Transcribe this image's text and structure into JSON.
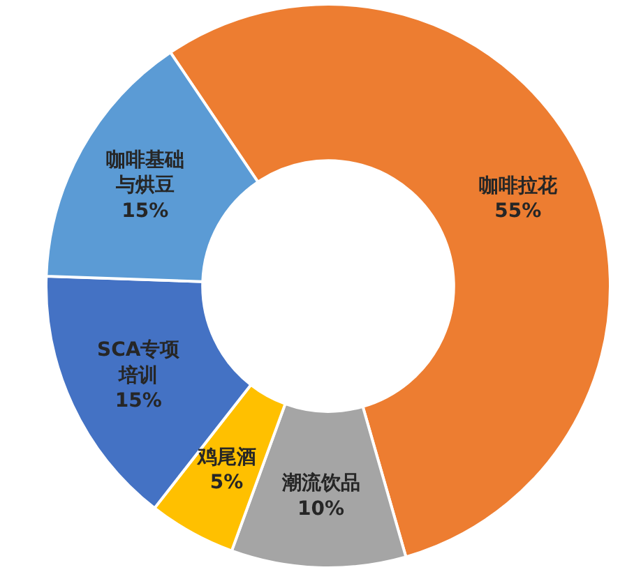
{
  "chart_data": {
    "type": "donut",
    "categories": [
      "咖啡拉花",
      "潮流饮品",
      "鸡尾酒",
      "SCA专项培训",
      "咖啡基础与烘豆"
    ],
    "values": [
      55,
      10,
      5,
      15,
      15
    ],
    "value_labels": [
      "55%",
      "10%",
      "5%",
      "15%",
      "15%"
    ],
    "colors": [
      "#ed7d31",
      "#a5a5a5",
      "#ffc000",
      "#4472c4",
      "#5b9bd5"
    ]
  }
}
